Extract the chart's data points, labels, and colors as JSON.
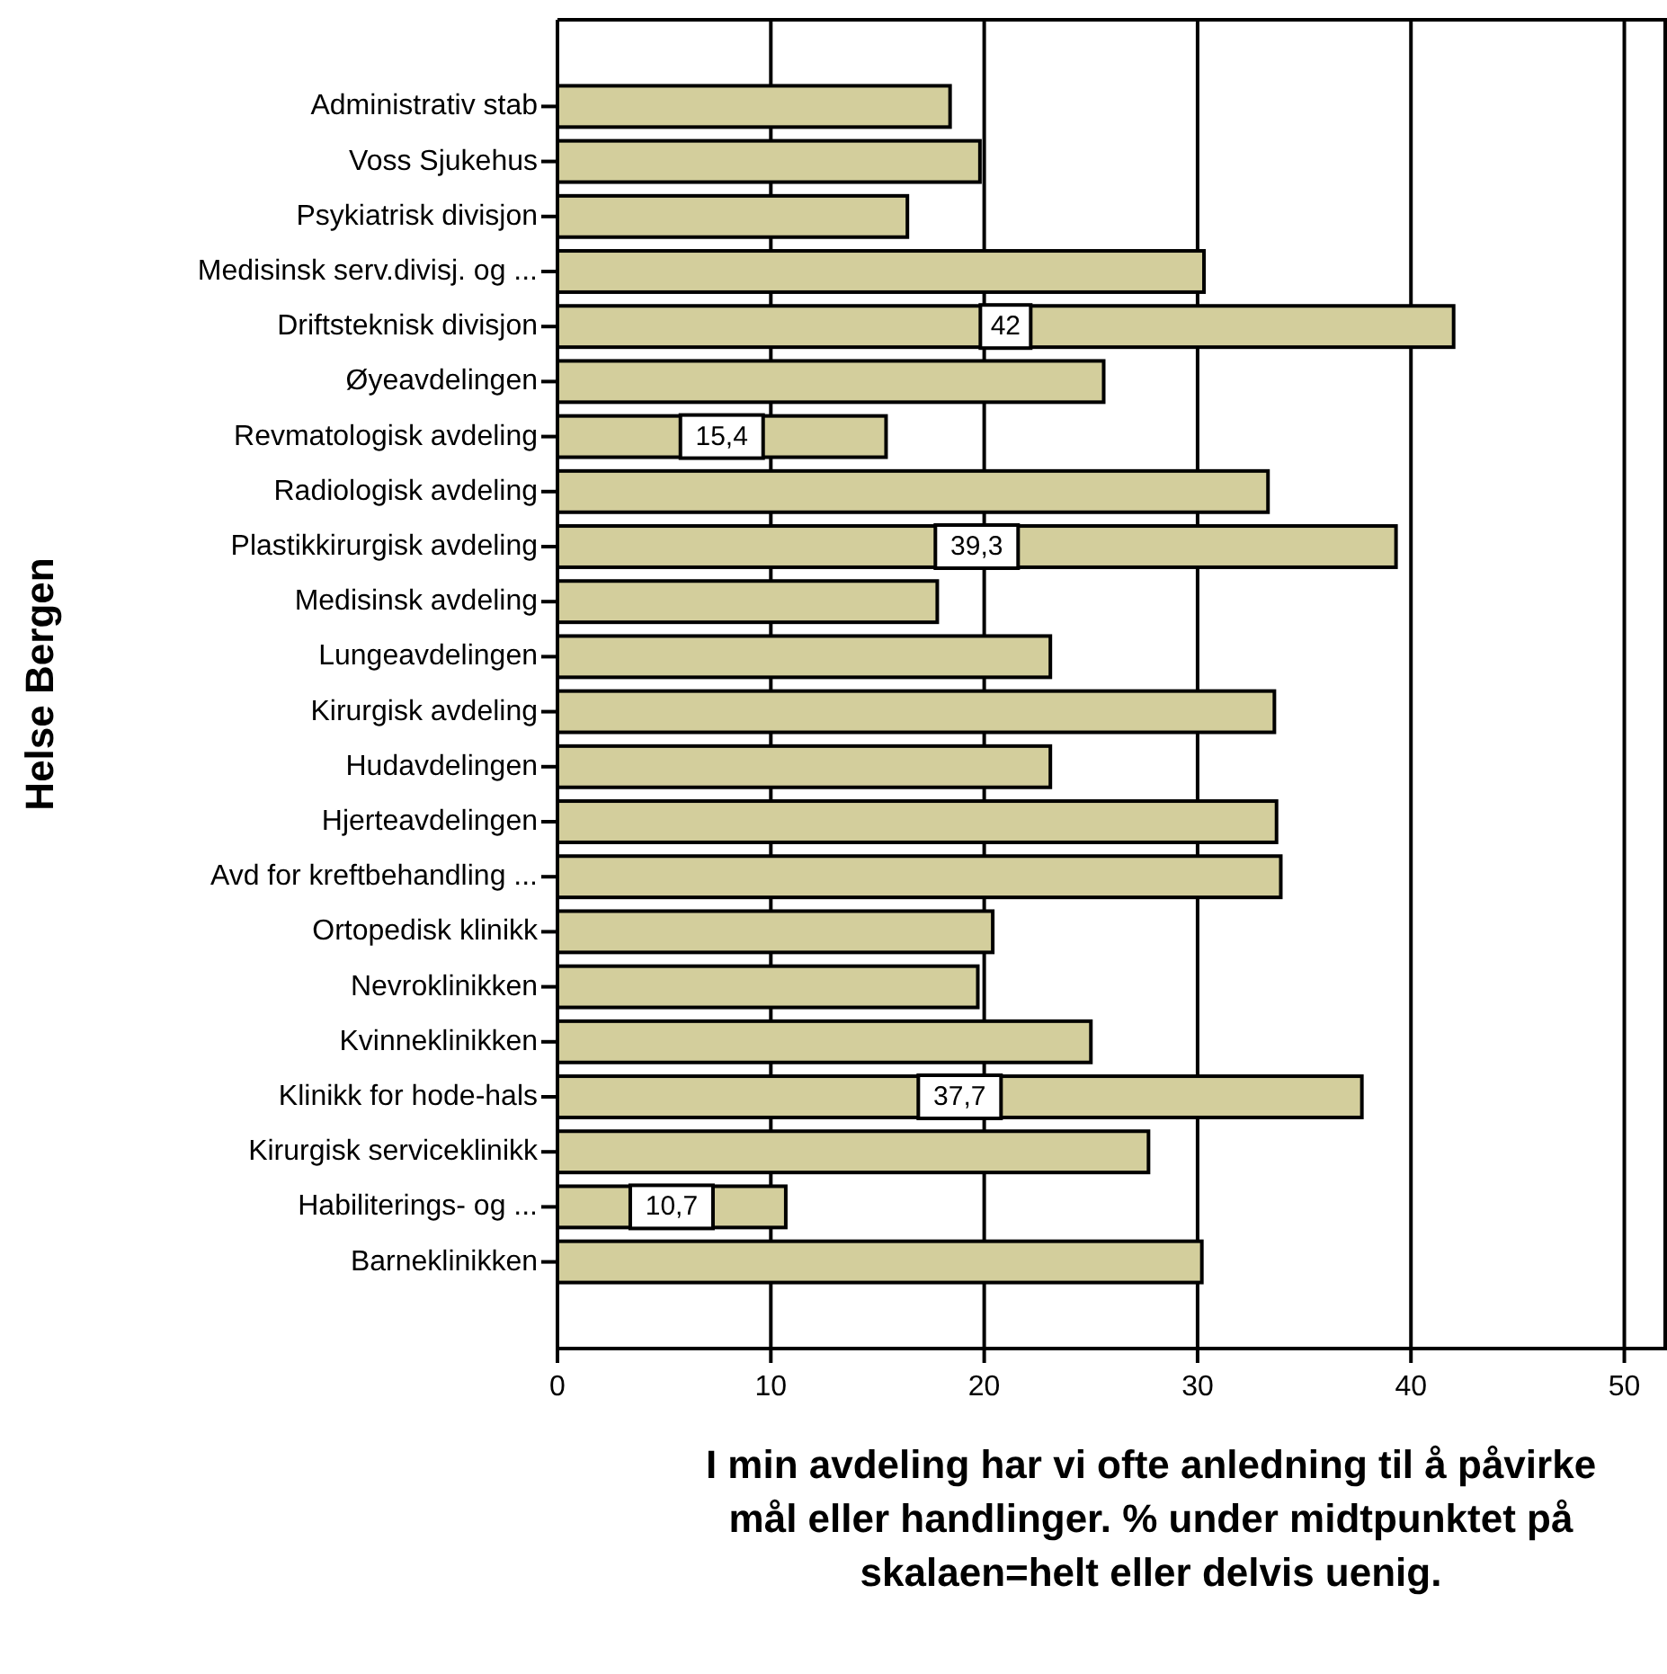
{
  "chart_data": {
    "type": "bar",
    "orientation": "horizontal",
    "ylabel": "Helse Bergen",
    "xlabel": "I min avdeling har vi ofte anledning til å påvirke mål eller handlinger. % under midtpunktet på skalaen=helt eller delvis uenig.",
    "categories": [
      "Administrativ stab",
      "Voss Sjukehus",
      "Psykiatrisk divisjon",
      "Medisinsk serv.divisj. og ...",
      "Driftsteknisk divisjon",
      "Øyeavdelingen",
      "Revmatologisk avdeling",
      "Radiologisk avdeling",
      "Plastikkirurgisk avdeling",
      "Medisinsk avdeling",
      "Lungeavdelingen",
      "Kirurgisk avdeling",
      "Hudavdelingen",
      "Hjerteavdelingen",
      "Avd for kreftbehandling ...",
      "Ortopedisk klinikk",
      "Nevroklinikken",
      "Kvinneklinikken",
      "Klinikk for hode-hals",
      "Kirurgisk serviceklinikk",
      "Habiliterings- og ...",
      "Barneklinikken"
    ],
    "values": [
      18.4,
      19.8,
      16.4,
      30.3,
      42,
      25.6,
      15.4,
      33.3,
      39.3,
      17.8,
      23.1,
      33.6,
      23.1,
      33.7,
      33.9,
      20.4,
      19.7,
      25.0,
      37.7,
      27.7,
      10.7,
      30.2
    ],
    "value_labels": [
      null,
      null,
      null,
      null,
      "42",
      null,
      "15,4",
      null,
      "39,3",
      null,
      null,
      null,
      null,
      null,
      null,
      null,
      null,
      null,
      "37,7",
      null,
      "10,7",
      null
    ],
    "color": "#d3ce9c",
    "xlim": [
      0,
      52
    ],
    "xticks": [
      0,
      10,
      20,
      30,
      40,
      50
    ],
    "grid": "x"
  }
}
